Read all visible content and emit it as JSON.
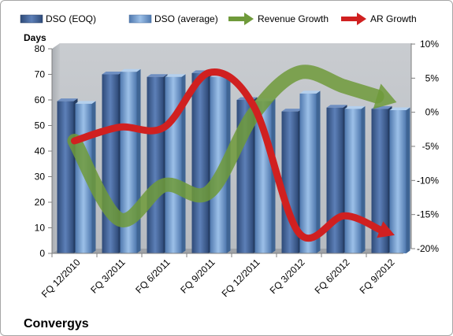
{
  "chart_data": {
    "type": "bar",
    "title": "Convergys",
    "ylabel": "Days",
    "categories": [
      "FQ 12/2010",
      "FQ 3/2011",
      "FQ 6/2011",
      "FQ 9/2011",
      "FQ 12/2011",
      "FQ 3/2012",
      "FQ 6/2012",
      "FQ 9/2012"
    ],
    "ylim": [
      0,
      80
    ],
    "yticks": [
      "0",
      "10",
      "20",
      "30",
      "40",
      "50",
      "60",
      "70",
      "80"
    ],
    "y2lim": [
      -20,
      10
    ],
    "y2ticks": [
      "-20%",
      "-15%",
      "-10%",
      "-5%",
      "0%",
      "5%",
      "10%"
    ],
    "legend_position": "top",
    "grid": false,
    "series": [
      {
        "name": "DSO (EOQ)",
        "type": "bar",
        "axis": "left",
        "color": "#4f6fa3",
        "values": [
          59.5,
          70,
          69,
          70.5,
          60,
          55.5,
          57,
          56.5
        ]
      },
      {
        "name": "DSO (average)",
        "type": "bar",
        "axis": "left",
        "color": "#7aa3d6",
        "values": [
          58.5,
          71,
          69,
          69,
          59.5,
          62.5,
          56.5,
          56
        ]
      },
      {
        "name": "Revenue Growth",
        "type": "line-arrow",
        "axis": "right",
        "color": "#6f9a3a",
        "values": [
          -3.5,
          -15,
          -10,
          -11,
          0.5,
          6.5,
          4.5,
          2.5
        ]
      },
      {
        "name": "AR Growth",
        "type": "line-arrow",
        "axis": "right",
        "color": "#d02020",
        "values": [
          -3.5,
          -1.5,
          -1.5,
          6.5,
          1.5,
          -17,
          -14.5,
          -17
        ]
      }
    ]
  }
}
